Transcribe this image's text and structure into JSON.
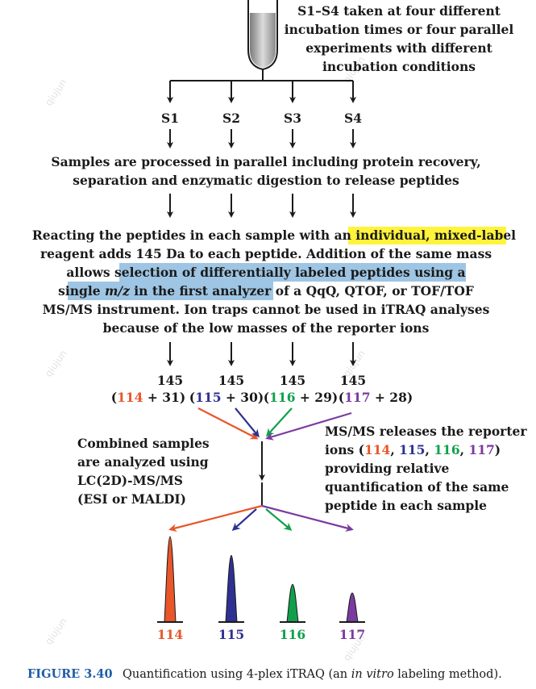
{
  "top_note": [
    "S1–S4 taken at four different",
    "incubation times or four parallel",
    "experiments with different",
    "incubation conditions"
  ],
  "samples": [
    "S1",
    "S2",
    "S3",
    "S4"
  ],
  "step_processing": [
    "Samples are processed in parallel including protein recovery,",
    "separation and enzymatic digestion to release peptides"
  ],
  "step_labeling": {
    "line1_plain": "Reacting the peptides in each sample with an ",
    "line1_highlight": "individual, mixed-label",
    "line2": "reagent adds 145 Da to each peptide. Addition of the same mass",
    "line3_plain": "allows",
    "line3_highlight": " selection of differentially labeled peptides using a",
    "line4_highlight_a": "single ",
    "line4_italic": "m/z",
    "line4_highlight_b": " in the first analyzer",
    "line4_plain": " of a QqQ, QTOF, or TOF/TOF",
    "line5": "MS/MS instrument. Ion traps cannot be used in iTRAQ analyses",
    "line6": "because of the low masses of the reporter ions"
  },
  "tags": [
    {
      "total": "145",
      "reporter": "114",
      "balance": " + 31)",
      "color": "#e8562a"
    },
    {
      "total": "145",
      "reporter": "115",
      "balance": " + 30)",
      "color": "#2e3192"
    },
    {
      "total": "145",
      "reporter": "116",
      "balance": " + 29)",
      "color": "#10a04c"
    },
    {
      "total": "145",
      "reporter": "117",
      "balance": " + 28)",
      "color": "#7b3aa0"
    }
  ],
  "combined_note": [
    "Combined samples",
    "are analyzed using",
    "LC(2D)-MS/MS",
    "(ESI or MALDI)"
  ],
  "release_note": {
    "line1": "MS/MS releases the reporter",
    "line2_prefix": "ions (",
    "line2_sep1": ", ",
    "line2_sep2": ", ",
    "line2_sep3": ", ",
    "line2_suffix": ")",
    "line3": "providing relative",
    "line4": "quantification of the same",
    "line5": "peptide in each sample"
  },
  "reporter_peaks": [
    {
      "label": "114",
      "relative_height": 1.0,
      "color": "#e8562a"
    },
    {
      "label": "115",
      "relative_height": 0.78,
      "color": "#2e3192"
    },
    {
      "label": "116",
      "relative_height": 0.44,
      "color": "#10a04c"
    },
    {
      "label": "117",
      "relative_height": 0.34,
      "color": "#7b3aa0"
    }
  ],
  "colors": {
    "highlight_yellow": "#fff33b",
    "highlight_blue": "#9ec5e3",
    "arrow": "#1a1a1a",
    "caption_blue": "#1f5da6"
  },
  "caption": {
    "label": "FIGURE 3.40",
    "text_a": "Quantification using 4-plex iTRAQ (an ",
    "text_italic": "in vitro",
    "text_b": " labeling method)."
  },
  "watermark": "qiujun"
}
